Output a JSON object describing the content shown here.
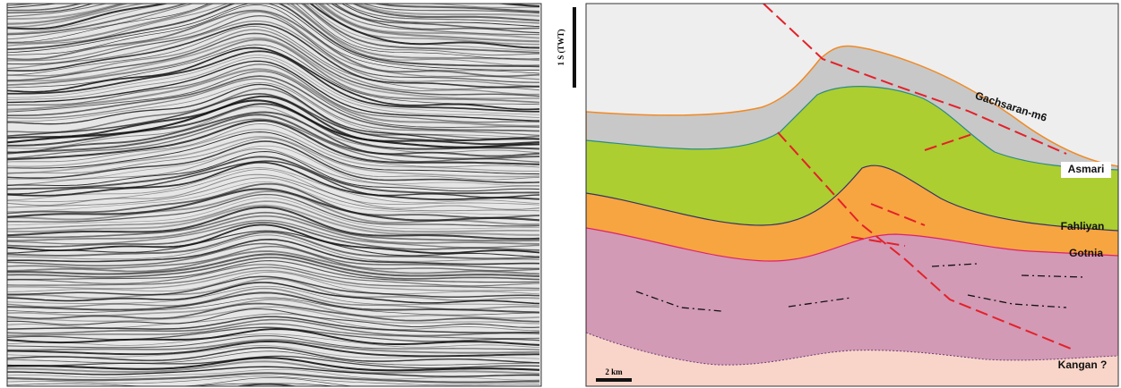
{
  "scale_bars": {
    "time": "1 S (TWT)",
    "distance": "2 km"
  },
  "horizons": [
    {
      "label": "Gachsaran-m6"
    },
    {
      "label": "Asmari"
    },
    {
      "label": "Fahliyan"
    },
    {
      "label": "Gotnia"
    },
    {
      "label": "Kangan ?"
    }
  ]
}
